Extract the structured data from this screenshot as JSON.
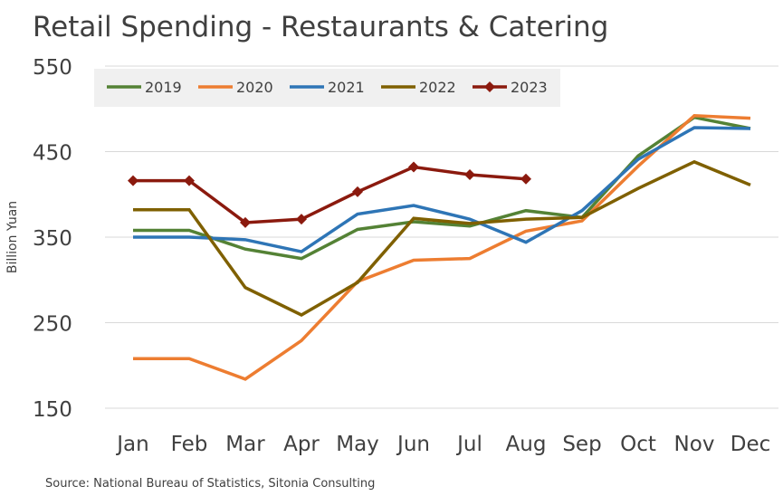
{
  "chart_data": {
    "type": "line",
    "title": "Retail Spending - Restaurants & Catering",
    "y_label": "Billion Yuan",
    "source": "Source: National Bureau of Statistics, Sitonia Consulting",
    "categories": [
      "Jan",
      "Feb",
      "Mar",
      "Apr",
      "May",
      "Jun",
      "Jul",
      "Aug",
      "Sep",
      "Oct",
      "Nov",
      "Dec"
    ],
    "series": [
      {
        "name": "2019",
        "color": "#548235",
        "values": [
          358,
          358,
          336,
          325,
          359,
          368,
          363,
          381,
          373,
          445,
          490,
          477
        ]
      },
      {
        "name": "2020",
        "color": "#ed7d31",
        "values": [
          208,
          208,
          184,
          229,
          298,
          323,
          325,
          357,
          369,
          433,
          492,
          489
        ]
      },
      {
        "name": "2021",
        "color": "#2e75b6",
        "values": [
          350,
          350,
          347,
          333,
          377,
          387,
          371,
          344,
          381,
          441,
          478,
          477
        ]
      },
      {
        "name": "2022",
        "color": "#7f6000",
        "values": [
          382,
          382,
          291,
          259,
          297,
          372,
          366,
          371,
          373,
          407,
          438,
          411
        ]
      },
      {
        "name": "2023",
        "color": "#8b1a0e",
        "marker": "diamond",
        "values": [
          416,
          416,
          367,
          371,
          403,
          432,
          423,
          418,
          null,
          null,
          null,
          null
        ]
      }
    ],
    "ylim": [
      150,
      550
    ],
    "yticks": [
      150,
      250,
      350,
      450,
      550
    ],
    "grid": true
  }
}
